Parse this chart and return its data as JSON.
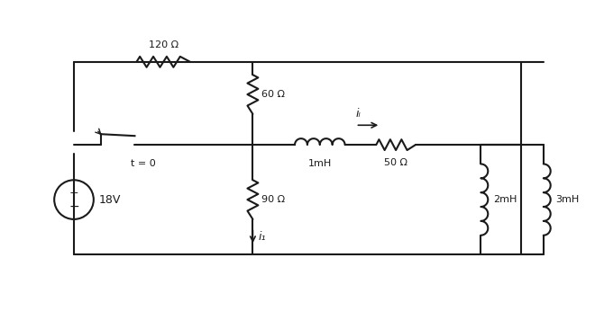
{
  "bg_color": "#ffffff",
  "line_color": "#1a1a1a",
  "line_width": 1.5,
  "fig_width": 6.6,
  "fig_height": 3.46,
  "labels": {
    "R120": "120 Ω",
    "R60": "60 Ω",
    "R90": "90 Ω",
    "R50": "50 Ω",
    "L1": "1mH",
    "L2": "2mH",
    "L3": "3mH",
    "V": "18V",
    "switch": "t = 0",
    "iL": "iₗ",
    "i1": "i₁"
  }
}
